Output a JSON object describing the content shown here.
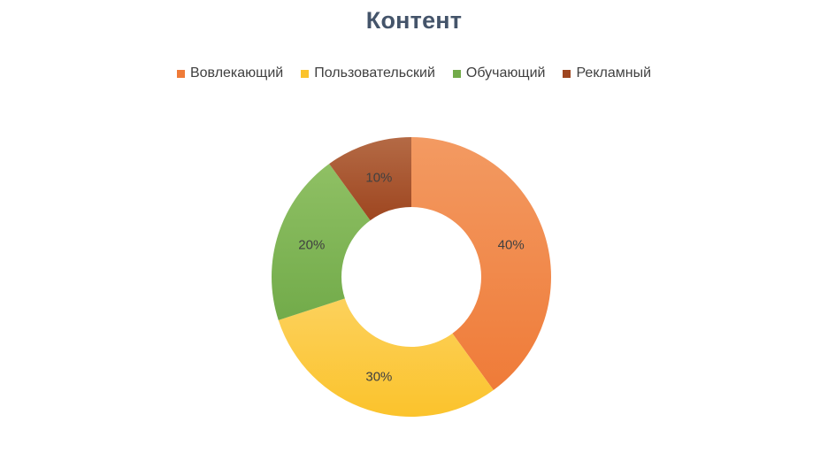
{
  "chart_data": {
    "type": "pie",
    "title": "Контент",
    "legend_position": "top",
    "categories": [
      "Вовлекающий",
      "Пользовательский",
      "Обучающий",
      "Рекламный"
    ],
    "values": [
      40,
      30,
      20,
      10
    ],
    "value_labels": [
      "40%",
      "30%",
      "20%",
      "10%"
    ],
    "colors": [
      "#ef7b38",
      "#fbc32c",
      "#72ab4a",
      "#9e4620"
    ],
    "colors_light": [
      "#f39a62",
      "#fcd15c",
      "#8fc064",
      "#b46a45"
    ],
    "donut": true
  }
}
